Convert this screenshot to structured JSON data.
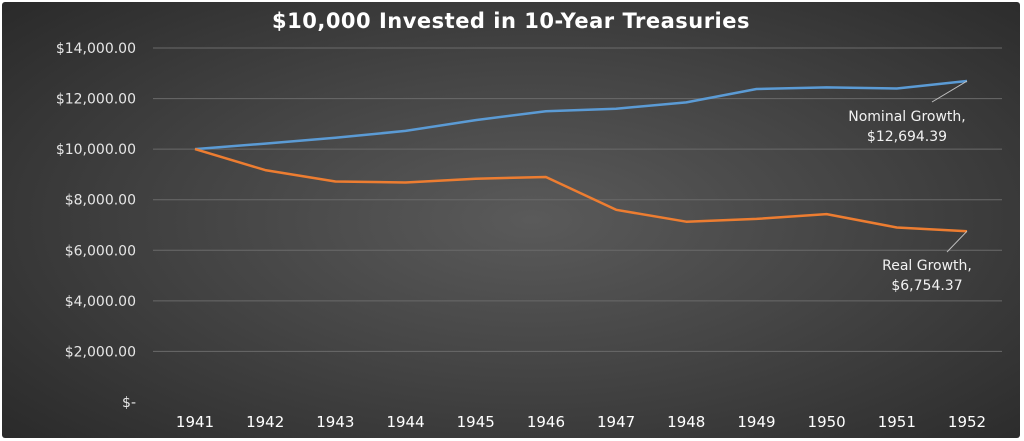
{
  "chart_data": {
    "type": "line",
    "title": "$10,000 Invested in 10-Year Treasuries",
    "xlabel": "",
    "ylabel": "",
    "x": [
      "1941",
      "1942",
      "1943",
      "1944",
      "1945",
      "1946",
      "1947",
      "1948",
      "1949",
      "1950",
      "1951",
      "1952"
    ],
    "ylim": [
      0,
      14000
    ],
    "yticks": [
      0,
      2000,
      4000,
      6000,
      8000,
      10000,
      12000,
      14000
    ],
    "ytick_labels": [
      "$-",
      "$2,000.00",
      "$4,000.00",
      "$6,000.00",
      "$8,000.00",
      "$10,000.00",
      "$12,000.00",
      "$14,000.00"
    ],
    "grid": true,
    "series": [
      {
        "key": "nominal",
        "color": "#5b9bd5",
        "values": [
          10000,
          10220,
          10450,
          10720,
          11150,
          11500,
          11600,
          11850,
          12380,
          12440,
          12400,
          12694.39
        ]
      },
      {
        "key": "real",
        "color": "#ed7d31",
        "values": [
          10000,
          9170,
          8720,
          8680,
          8830,
          8900,
          7600,
          7130,
          7240,
          7430,
          6900,
          6754.37
        ]
      }
    ],
    "annotations": [
      {
        "series": "nominal",
        "line1": "Nominal Growth,",
        "line2": "$12,694.39"
      },
      {
        "series": "real",
        "line1": "Real Growth,",
        "line2": "$6,754.37"
      }
    ]
  }
}
